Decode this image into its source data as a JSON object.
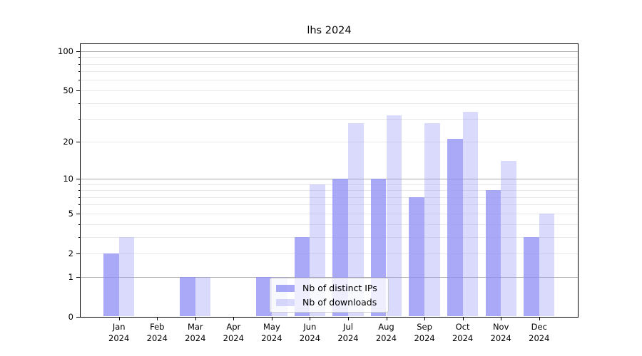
{
  "page": {
    "background": "#ffffff"
  },
  "chart_data": {
    "type": "bar",
    "title": "lhs 2024",
    "categories": [
      "Jan",
      "Feb",
      "Mar",
      "Apr",
      "May",
      "Jun",
      "Jul",
      "Aug",
      "Sep",
      "Oct",
      "Nov",
      "Dec"
    ],
    "category_year_suffix": "2024",
    "series": [
      {
        "name": "Nb of distinct IPs",
        "color": "rgba(140,140,245,0.75)",
        "values": [
          2,
          0,
          1,
          0,
          1,
          3,
          10,
          10,
          7,
          21,
          8,
          3
        ]
      },
      {
        "name": "Nb of downloads",
        "color": "rgba(140,140,245,0.32)",
        "values": [
          3,
          0,
          1,
          0,
          1,
          9,
          28,
          32,
          28,
          34,
          14,
          5
        ]
      }
    ],
    "xlabel": "",
    "ylabel": "",
    "yscale": "log1p",
    "ylim": [
      0,
      113
    ],
    "ytick_values": [
      0,
      1,
      2,
      5,
      10,
      20,
      50,
      100
    ],
    "ytick_labels": [
      "0",
      "1",
      "2",
      "5",
      "10",
      "20",
      "50",
      "100"
    ],
    "grid": {
      "on": true,
      "major_values": [
        1,
        10,
        100
      ],
      "minor_values": [
        2,
        3,
        4,
        5,
        6,
        7,
        8,
        9,
        20,
        30,
        40,
        50,
        60,
        70,
        80,
        90
      ],
      "major_color": "#ababab",
      "minor_color": "#e9e9e9"
    },
    "legend": {
      "location": "lower center",
      "background": "rgba(255,255,255,0.8)",
      "border_color": "#cccccc"
    },
    "axis_color": "#000000",
    "text_color": "#000000"
  }
}
